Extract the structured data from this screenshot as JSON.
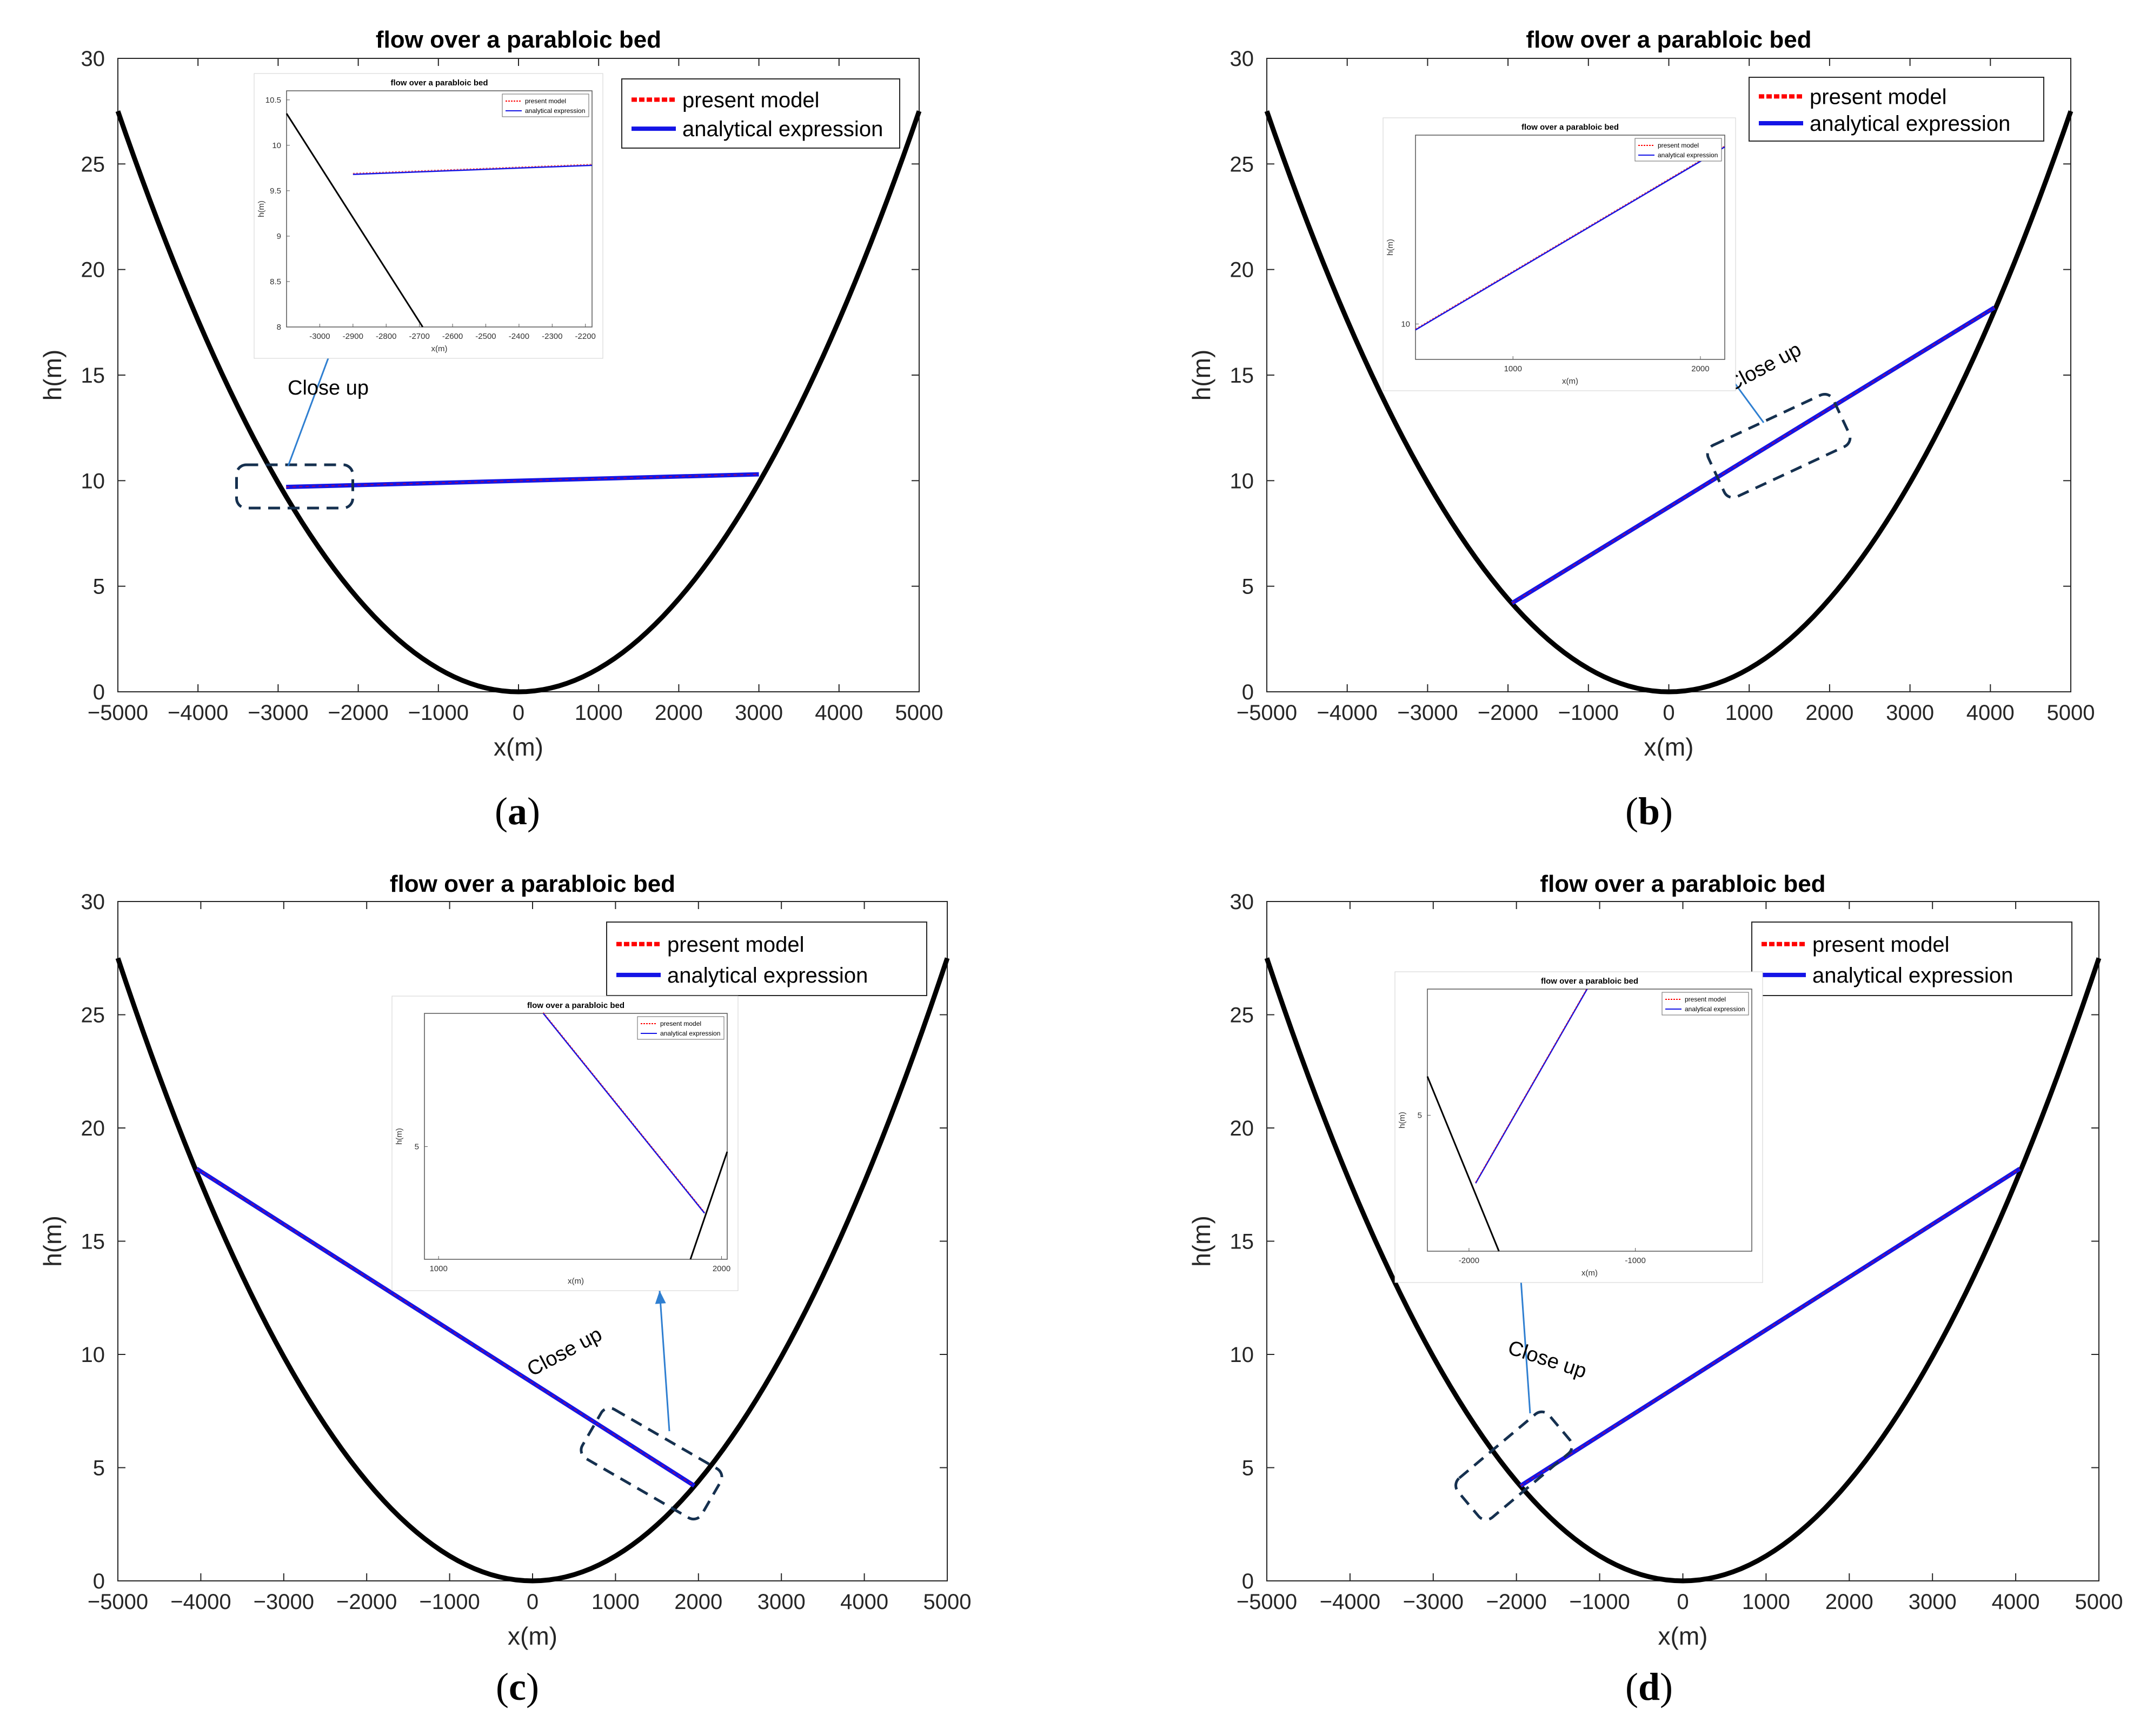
{
  "colors": {
    "present_model": "#ff0000",
    "analytical_expression": "#1414e6",
    "bed": "#000000",
    "closeup_box": "#15304f",
    "closeup_arrow": "#2f7fd1"
  },
  "panels_captions": [
    "a",
    "b",
    "c",
    "d"
  ],
  "chart_data": [
    {
      "type": "line",
      "panel": "a",
      "title": "flow over a parabloic bed",
      "xlabel": "x(m)",
      "ylabel": "h(m)",
      "xlim": [
        -5000,
        5000
      ],
      "ylim": [
        0,
        30
      ],
      "xticks": [
        -5000,
        -4000,
        -3000,
        -2000,
        -1000,
        0,
        1000,
        2000,
        3000,
        4000,
        5000
      ],
      "yticks": [
        0,
        5,
        10,
        15,
        20,
        25,
        30
      ],
      "grid": false,
      "legend_position": "top-right",
      "legend": [
        "present model",
        "analytical expression"
      ],
      "bed": {
        "formula": "h = 1.1e-6 * x^2",
        "x_range": [
          -5000,
          5000
        ]
      },
      "series": [
        {
          "name": "present model",
          "x": [
            -2900,
            3000
          ],
          "y": [
            9.7,
            10.3
          ]
        },
        {
          "name": "analytical expression",
          "x": [
            -2900,
            3000
          ],
          "y": [
            9.7,
            10.3
          ]
        }
      ],
      "annotation": "Close up",
      "inset": {
        "title": "flow over a parabloic bed",
        "xlabel": "x(m)",
        "ylabel": "h(m)",
        "xlim": [
          -3100,
          -2180
        ],
        "ylim": [
          8,
          10.6
        ],
        "xticks": [
          -3000,
          -2900,
          -2800,
          -2700,
          -2600,
          -2500,
          -2400,
          -2300,
          -2200
        ],
        "yticks": [
          8,
          8.5,
          9,
          9.5,
          10,
          10.5
        ],
        "xtick_labels": [
          "-3000",
          "-2900",
          "-2800",
          "-2700",
          "-2600",
          "-2500",
          "-2400",
          "-2300",
          "-2200"
        ],
        "ytick_labels": [
          "8",
          "8.5",
          "9",
          "9.5",
          "10",
          "10.5"
        ],
        "legend": [
          "present model",
          "analytical expression"
        ],
        "water": {
          "x": [
            -2900,
            -2180
          ],
          "y": [
            9.68,
            9.78
          ]
        },
        "bed_line": {
          "x": [
            -3100,
            -2690
          ],
          "y": [
            10.35,
            8.0
          ]
        }
      }
    },
    {
      "type": "line",
      "panel": "b",
      "title": "flow over a parabloic bed",
      "xlabel": "x(m)",
      "ylabel": "h(m)",
      "xlim": [
        -5000,
        5000
      ],
      "ylim": [
        0,
        30
      ],
      "xticks": [
        -5000,
        -4000,
        -3000,
        -2000,
        -1000,
        0,
        1000,
        2000,
        3000,
        4000,
        5000
      ],
      "yticks": [
        0,
        5,
        10,
        15,
        20,
        25,
        30
      ],
      "grid": false,
      "legend_position": "top-right",
      "legend": [
        "present model",
        "analytical expression"
      ],
      "bed": {
        "formula": "h = 1.1e-6 * x^2",
        "x_range": [
          -5000,
          5000
        ]
      },
      "series": [
        {
          "name": "present model",
          "x": [
            -1950,
            4050
          ],
          "y": [
            4.2,
            18.2
          ]
        },
        {
          "name": "analytical expression",
          "x": [
            -1950,
            4050
          ],
          "y": [
            4.2,
            18.2
          ]
        }
      ],
      "annotation": "Close up",
      "inset": {
        "title": "flow over a parabloic bed",
        "xlabel": "x(m)",
        "ylabel": "h(m)",
        "xlim": [
          480,
          2130
        ],
        "ylim": [
          9.7,
          11.6
        ],
        "xticks": [
          1000,
          2000
        ],
        "yticks": [
          10
        ],
        "xtick_labels": [
          "1000",
          "2000"
        ],
        "ytick_labels": [
          "10"
        ],
        "legend": [
          "present model",
          "analytical expression"
        ],
        "water": {
          "x": [
            480,
            2130
          ],
          "y": [
            9.95,
            11.5
          ]
        }
      }
    },
    {
      "type": "line",
      "panel": "c",
      "title": "flow over a parabloic bed",
      "xlabel": "x(m)",
      "ylabel": "h(m)",
      "xlim": [
        -5000,
        5000
      ],
      "ylim": [
        0,
        30
      ],
      "xticks": [
        -5000,
        -4000,
        -3000,
        -2000,
        -1000,
        0,
        1000,
        2000,
        3000,
        4000,
        5000
      ],
      "yticks": [
        0,
        5,
        10,
        15,
        20,
        25,
        30
      ],
      "grid": false,
      "legend_position": "top-right",
      "legend": [
        "present model",
        "analytical expression"
      ],
      "bed": {
        "formula": "h = 1.1e-6 * x^2",
        "x_range": [
          -5000,
          5000
        ]
      },
      "series": [
        {
          "name": "present model",
          "x": [
            -4050,
            1950
          ],
          "y": [
            18.2,
            4.2
          ]
        },
        {
          "name": "analytical expression",
          "x": [
            -4050,
            1950
          ],
          "y": [
            18.2,
            4.2
          ]
        }
      ],
      "annotation": "Close up",
      "inset": {
        "title": "flow over a parabloic bed",
        "xlabel": "x(m)",
        "ylabel": "h(m)",
        "xlim": [
          950,
          2020
        ],
        "ylim": [
          3.9,
          6.3
        ],
        "xticks": [
          1000,
          2000
        ],
        "yticks": [
          5
        ],
        "xtick_labels": [
          "1000",
          "2000"
        ],
        "ytick_labels": [
          "5"
        ],
        "legend": [
          "present model",
          "analytical expression"
        ],
        "water": {
          "x": [
            1370,
            1940
          ],
          "y": [
            6.3,
            4.35
          ]
        },
        "bed_line": {
          "x": [
            1890,
            2020
          ],
          "y": [
            3.9,
            4.95
          ]
        }
      }
    },
    {
      "type": "line",
      "panel": "d",
      "title": "flow over a parabloic bed",
      "xlabel": "x(m)",
      "ylabel": "h(m)",
      "xlim": [
        -5000,
        5000
      ],
      "ylim": [
        0,
        30
      ],
      "xticks": [
        -5000,
        -4000,
        -3000,
        -2000,
        -1000,
        0,
        1000,
        2000,
        3000,
        4000,
        5000
      ],
      "yticks": [
        0,
        5,
        10,
        15,
        20,
        25,
        30
      ],
      "grid": false,
      "legend_position": "top-right",
      "legend": [
        "present model",
        "analytical expression"
      ],
      "bed": {
        "formula": "h = 1.1e-6 * x^2",
        "x_range": [
          -5000,
          5000
        ]
      },
      "series": [
        {
          "name": "present model",
          "x": [
            -1950,
            4050
          ],
          "y": [
            4.2,
            18.2
          ]
        },
        {
          "name": "analytical expression",
          "x": [
            -1950,
            4050
          ],
          "y": [
            4.2,
            18.2
          ]
        }
      ],
      "annotation": "Close up",
      "inset": {
        "title": "flow over a parabloic bed",
        "xlabel": "x(m)",
        "ylabel": "h(m)",
        "xlim": [
          -2250,
          -300
        ],
        "ylim": [
          3.6,
          6.3
        ],
        "xticks": [
          -2000,
          -1000
        ],
        "yticks": [
          5
        ],
        "xtick_labels": [
          "-2000",
          "-1000"
        ],
        "ytick_labels": [
          "5"
        ],
        "legend": [
          "present model",
          "analytical expression"
        ],
        "water": {
          "x": [
            -1960,
            -1290
          ],
          "y": [
            4.3,
            6.3
          ]
        },
        "bed_line": {
          "x": [
            -2250,
            -1820
          ],
          "y": [
            5.4,
            3.6
          ]
        }
      }
    }
  ]
}
